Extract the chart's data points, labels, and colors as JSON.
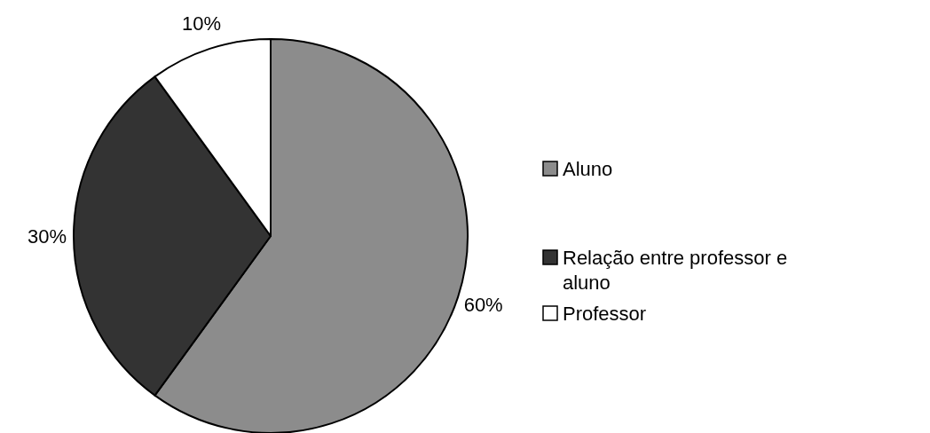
{
  "chart_data": {
    "type": "pie",
    "categories": [
      "Aluno",
      "Relação entre professor e aluno",
      "Professor"
    ],
    "values": [
      60,
      30,
      10
    ],
    "colors": [
      "#8c8c8c",
      "#333333",
      "#ffffff"
    ],
    "value_labels": [
      "60%",
      "30%",
      "10%"
    ],
    "legend": "right"
  }
}
